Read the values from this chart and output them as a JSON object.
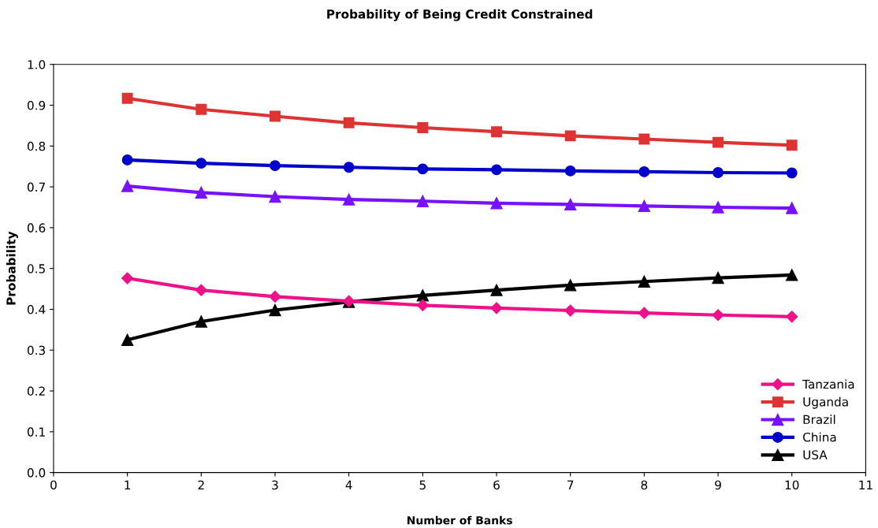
{
  "chart_data": {
    "type": "line",
    "title": "Probability of Being Credit Constrained",
    "xlabel": "Number of Banks",
    "ylabel": "Probability",
    "x": [
      1,
      2,
      3,
      4,
      5,
      6,
      7,
      8,
      9,
      10
    ],
    "xlim": [
      0,
      11
    ],
    "xticks": [
      0,
      1,
      2,
      3,
      4,
      5,
      6,
      7,
      8,
      9,
      10,
      11
    ],
    "ylim": [
      0,
      1
    ],
    "yticks": [
      {
        "value": 0,
        "label": "0.0"
      },
      0.1,
      0.2,
      0.3,
      0.4,
      0.5,
      0.6,
      0.7,
      0.8,
      0.9,
      {
        "value": 1,
        "label": "1.0"
      }
    ],
    "grid": false,
    "legend": "bottom right",
    "line_style": "solid",
    "series": [
      {
        "name": "Tanzania",
        "color": "#ee1188",
        "marker": "diamond",
        "values": [
          0.476,
          0.447,
          0.431,
          0.42,
          0.41,
          0.403,
          0.397,
          0.391,
          0.386,
          0.382
        ]
      },
      {
        "name": "Uganda",
        "color": "#dd3333",
        "marker": "square",
        "values": [
          0.917,
          0.89,
          0.873,
          0.857,
          0.845,
          0.835,
          0.825,
          0.817,
          0.809,
          0.802
        ]
      },
      {
        "name": "Brazil",
        "color": "#7711ff",
        "marker": "triangle",
        "values": [
          0.702,
          0.686,
          0.676,
          0.669,
          0.665,
          0.66,
          0.657,
          0.653,
          0.65,
          0.648
        ]
      },
      {
        "name": "China",
        "color": "#0000cc",
        "marker": "circle",
        "values": [
          0.766,
          0.758,
          0.752,
          0.748,
          0.744,
          0.742,
          0.739,
          0.737,
          0.735,
          0.734
        ]
      },
      {
        "name": "USA",
        "color": "#000000",
        "marker": "triangle",
        "values": [
          0.325,
          0.37,
          0.398,
          0.418,
          0.434,
          0.447,
          0.459,
          0.468,
          0.477,
          0.484
        ]
      }
    ]
  }
}
